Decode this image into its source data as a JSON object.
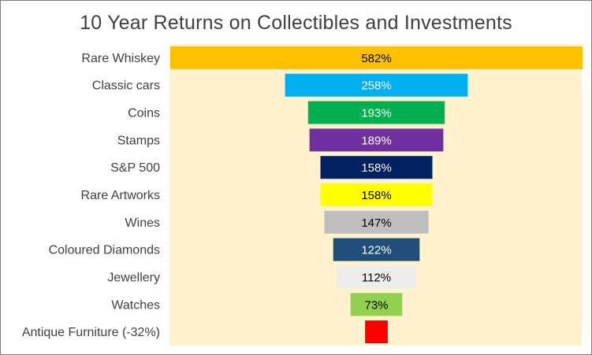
{
  "chart_data": {
    "type": "bar",
    "subtype": "funnel",
    "title": "10 Year Returns on Collectibles and Investments",
    "categories": [
      "Rare Whiskey",
      "Classic cars",
      "Coins",
      "Stamps",
      "S&P 500",
      "Rare Artworks",
      "Wines",
      "Coloured Diamonds",
      "Jewellery",
      "Watches",
      "Antique Furniture (-32%)"
    ],
    "values": [
      582,
      258,
      193,
      189,
      158,
      158,
      147,
      122,
      112,
      73,
      32
    ],
    "value_labels": [
      "582%",
      "258%",
      "193%",
      "189%",
      "158%",
      "158%",
      "147%",
      "122%",
      "112%",
      "73%",
      ""
    ],
    "colors": [
      "#FFC000",
      "#00B0F0",
      "#00B050",
      "#7030A0",
      "#002060",
      "#FFFF00",
      "#BFBFBF",
      "#1F4E79",
      "#EDEDED",
      "#92D050",
      "#FF0000"
    ],
    "label_colors": [
      "#000000",
      "#ffffff",
      "#ffffff",
      "#ffffff",
      "#ffffff",
      "#000000",
      "#000000",
      "#ffffff",
      "#000000",
      "#000000",
      "#000000"
    ],
    "plot_background": "#FFF2CC",
    "xlim": [
      0,
      582
    ],
    "grid": false,
    "legend": "none"
  }
}
